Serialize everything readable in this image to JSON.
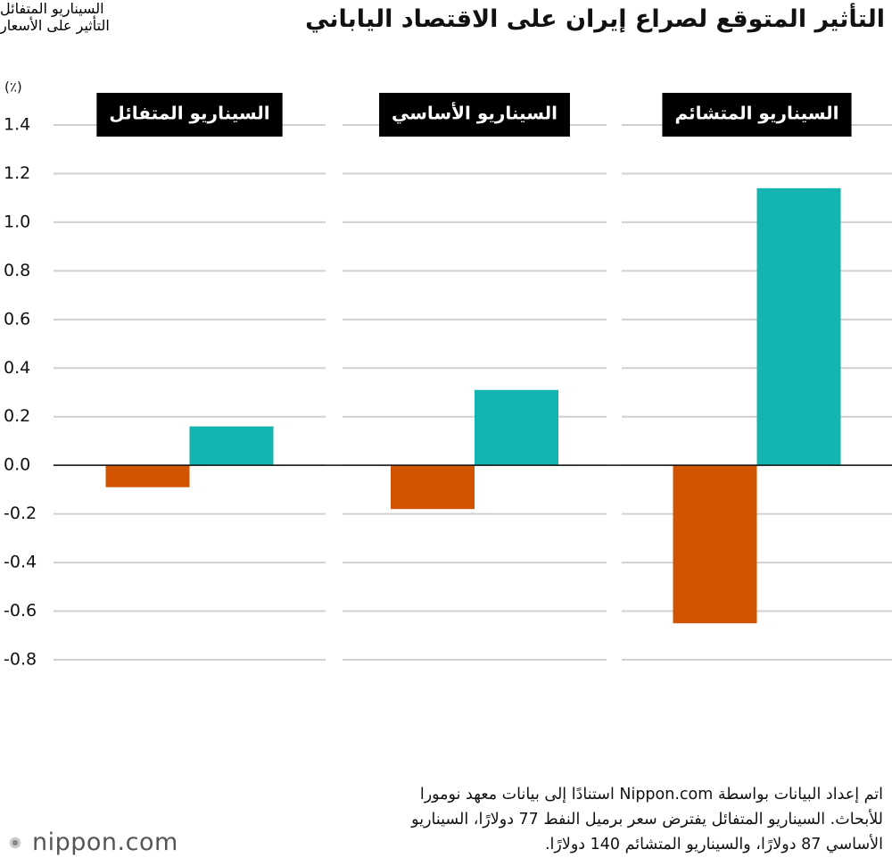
{
  "chart_data": {
    "type": "bar",
    "title": "التأثير المتوقع لصراع إيران على الاقتصاد الياباني",
    "y_label": "(٪)",
    "categories": [
      "السيناريو المتفائل",
      "السيناريو الأساسي",
      "السيناريو المتشائم"
    ],
    "series": [
      {
        "name": "السيناريو المتفائل",
        "color": "#d35400",
        "values": [
          -0.09,
          -0.18,
          -0.65
        ]
      },
      {
        "name": "التأثير على الأسعار",
        "color": "#14b5b0",
        "values": [
          0.16,
          0.31,
          1.14
        ]
      }
    ],
    "ylim": [
      -0.8,
      1.4
    ],
    "yticks": [
      -0.8,
      -0.6,
      -0.4,
      -0.2,
      {
        "value": 0,
        "label": "0.0"
      },
      0.2,
      0.4,
      0.6,
      0.8,
      {
        "value": 1,
        "label": "1.0"
      },
      1.2,
      1.4
    ],
    "grid": true,
    "note": [
      "اتم إعداد البيانات بواسطة Nippon.com استنادًا إلى بيانات معهد نومورا",
      "للأبحاث. السيناريو المتفائل يفترض سعر برميل النفط 77 دولارًا، السيناريو",
      "الأساسي 87 دولارًا، والسيناريو المتشائم 140 دولارًا."
    ],
    "source_logo": "nippon.com"
  }
}
